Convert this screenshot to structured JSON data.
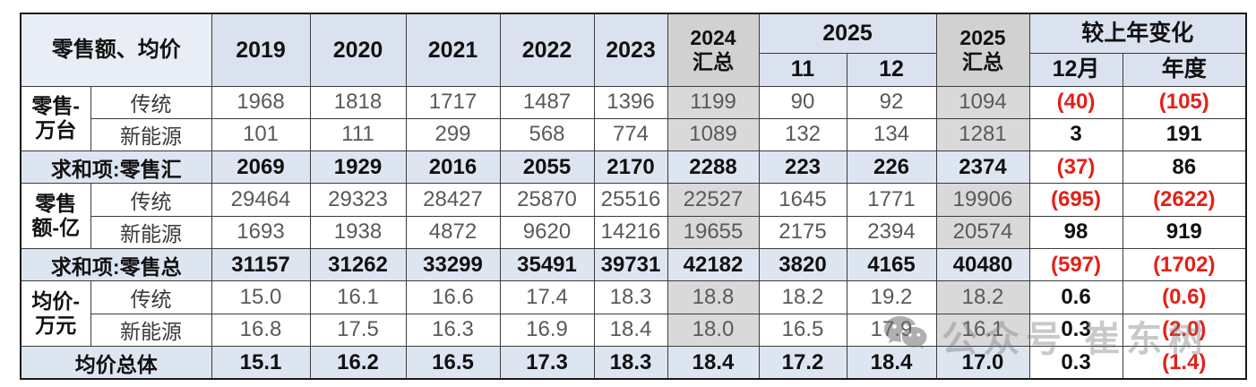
{
  "header": {
    "corner": "零售额、均价",
    "years": [
      "2019",
      "2020",
      "2021",
      "2022",
      "2023"
    ],
    "total2024": {
      "line1": "2024",
      "line2": "汇总"
    },
    "group2025": {
      "label": "2025",
      "months": [
        "11",
        "12"
      ]
    },
    "total2025": {
      "line1": "2025",
      "line2": "汇总"
    },
    "change": {
      "label": "较上年变化",
      "cols": [
        "12月",
        "年度"
      ]
    }
  },
  "group_labels": [
    [
      "零售-",
      "万台"
    ],
    [
      "零售",
      "额-亿"
    ],
    [
      "均价-",
      "万元"
    ]
  ],
  "chart_data": {
    "type": "table",
    "title": "零售额、均价",
    "columns": [
      "2019",
      "2020",
      "2021",
      "2022",
      "2023",
      "2024汇总",
      "2025-11",
      "2025-12",
      "2025汇总",
      "较上年变化-12月",
      "较上年变化-年度"
    ],
    "row_groups": [
      {
        "group": "零售-万台",
        "rows": [
          {
            "label": "传统",
            "values": [
              "1968",
              "1818",
              "1717",
              "1487",
              "1396",
              "1199",
              "90",
              "92",
              "1094",
              "(40)",
              "(105)"
            ]
          },
          {
            "label": "新能源",
            "values": [
              "101",
              "111",
              "299",
              "568",
              "774",
              "1089",
              "132",
              "134",
              "1281",
              "3",
              "191"
            ]
          }
        ],
        "total": {
          "label": "求和项:零售汇",
          "values": [
            "2069",
            "1929",
            "2016",
            "2055",
            "2170",
            "2288",
            "223",
            "226",
            "2374",
            "(37)",
            "86"
          ]
        }
      },
      {
        "group": "零售额-亿",
        "rows": [
          {
            "label": "传统",
            "values": [
              "29464",
              "29323",
              "28427",
              "25870",
              "25516",
              "22527",
              "1645",
              "1771",
              "19906",
              "(695)",
              "(2622)"
            ]
          },
          {
            "label": "新能源",
            "values": [
              "1693",
              "1938",
              "4872",
              "9620",
              "14216",
              "19655",
              "2175",
              "2394",
              "20574",
              "98",
              "919"
            ]
          }
        ],
        "total": {
          "label": "求和项:零售总",
          "values": [
            "31157",
            "31262",
            "33299",
            "35491",
            "39731",
            "42182",
            "3820",
            "4165",
            "40480",
            "(597)",
            "(1702)"
          ]
        }
      },
      {
        "group": "均价-万元",
        "rows": [
          {
            "label": "传统",
            "values": [
              "15.0",
              "16.1",
              "16.6",
              "17.4",
              "18.3",
              "18.8",
              "18.2",
              "19.2",
              "18.2",
              "0.6",
              "(0.6)"
            ]
          },
          {
            "label": "新能源",
            "values": [
              "16.8",
              "17.5",
              "16.3",
              "16.9",
              "18.4",
              "18.0",
              "16.5",
              "17.9",
              "16.1",
              "0.3",
              "(2.0)"
            ]
          }
        ],
        "total": {
          "label": "均价总体",
          "values": [
            "15.1",
            "16.2",
            "16.5",
            "17.3",
            "18.3",
            "18.4",
            "17.2",
            "18.4",
            "17.0",
            "0.3",
            "(1.4)"
          ]
        }
      }
    ],
    "layout": {
      "gray_value_columns": [
        "2024汇总",
        "2025汇总"
      ],
      "negative_format": "parentheses-red",
      "total_row_background": "light-blue"
    }
  },
  "watermark": {
    "icon": "wechat-icon",
    "text": "公众号 崔东树"
  },
  "colors": {
    "header_blue": "#dbe2ef",
    "corner_blue": "#e9edf6",
    "header_gray": "#d1d1d1",
    "value_gray": "#d9d9d9",
    "total_row_blue": "#dde5f1",
    "negative_red": "#e32119",
    "data_text": "#595959",
    "border": "#3c3c3c"
  }
}
